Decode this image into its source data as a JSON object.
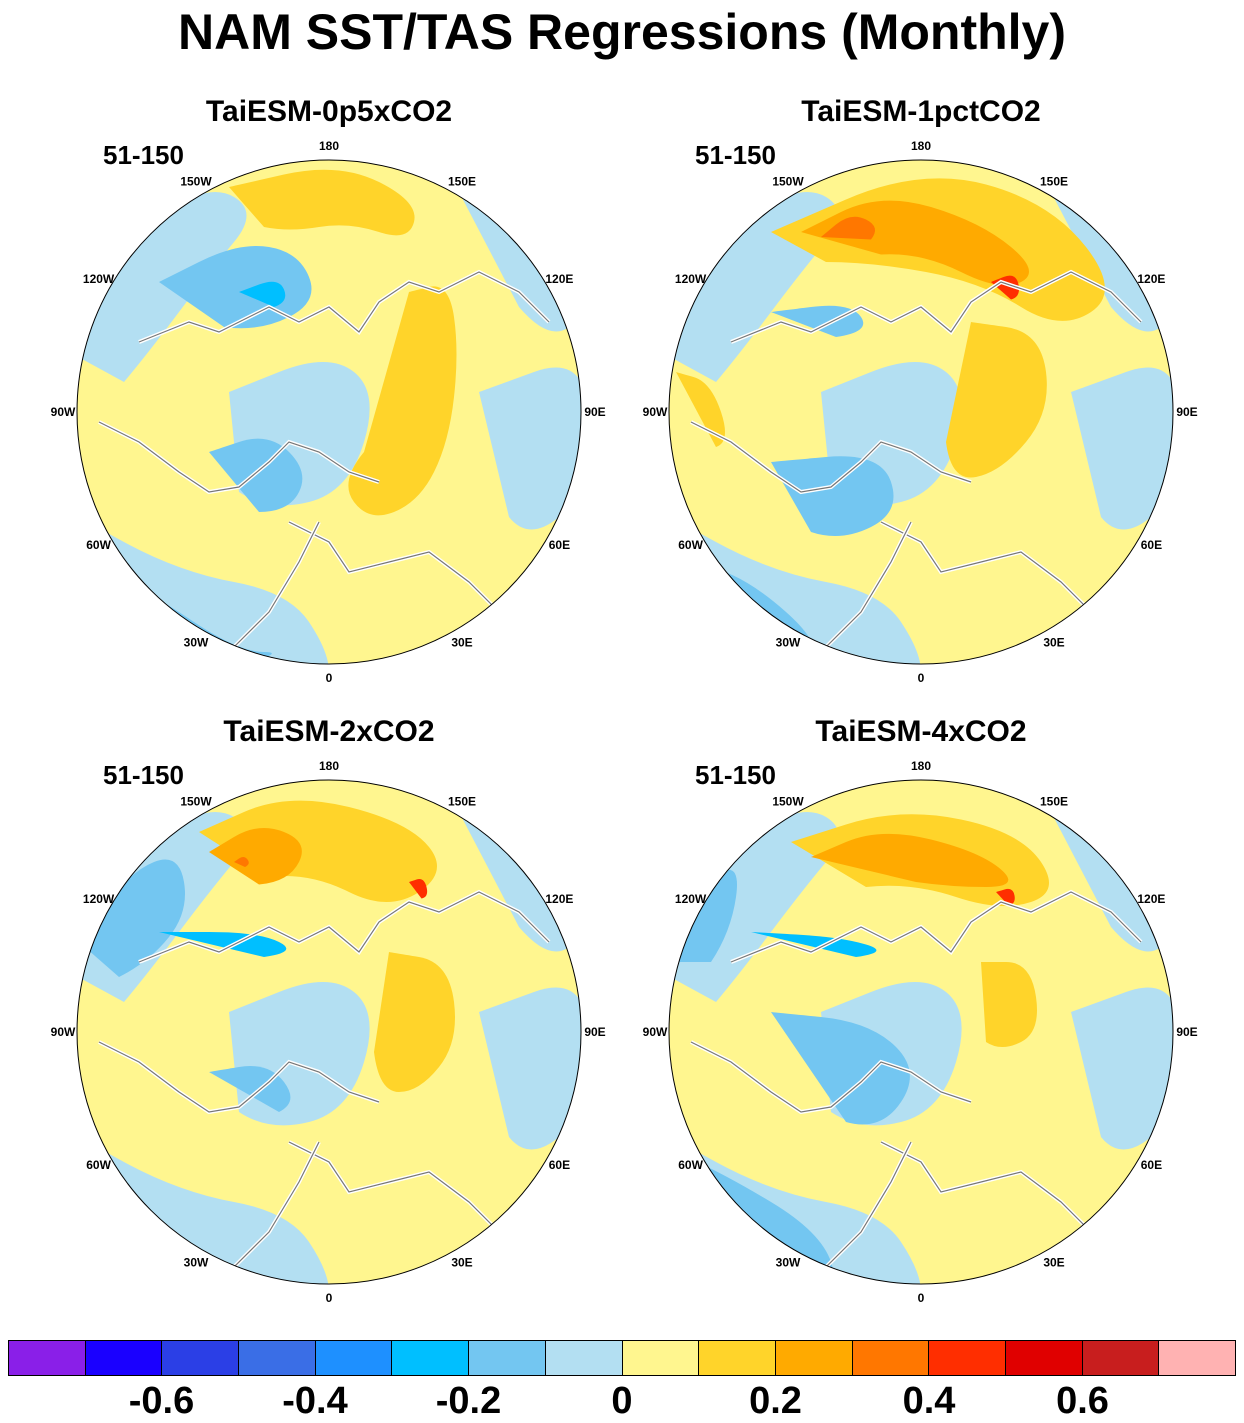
{
  "title": "NAM SST/TAS Regressions (Monthly)",
  "panels": [
    {
      "title": "TaiESM-0p5xCO2",
      "period": "51-150"
    },
    {
      "title": "TaiESM-1pctCO2",
      "period": "51-150"
    },
    {
      "title": "TaiESM-2xCO2",
      "period": "51-150"
    },
    {
      "title": "TaiESM-4xCO2",
      "period": "51-150"
    }
  ],
  "longitude_labels": [
    "180",
    "150E",
    "120E",
    "90E",
    "60E",
    "30E",
    "0",
    "30W",
    "60W",
    "90W",
    "120W",
    "150W"
  ],
  "colorbar": {
    "colors": [
      "#8a1fe8",
      "#1a00ff",
      "#2b3fe6",
      "#3a6ee6",
      "#1e90ff",
      "#00bfff",
      "#73c6f1",
      "#b3dff2",
      "#fff68f",
      "#ffd42a",
      "#ffaa00",
      "#ff7700",
      "#ff2e00",
      "#e00000",
      "#c81e1e",
      "#ffb2b2"
    ],
    "tick_labels": [
      "-0.6",
      "-0.4",
      "-0.2",
      "0",
      "0.2",
      "0.4",
      "0.6"
    ]
  }
}
